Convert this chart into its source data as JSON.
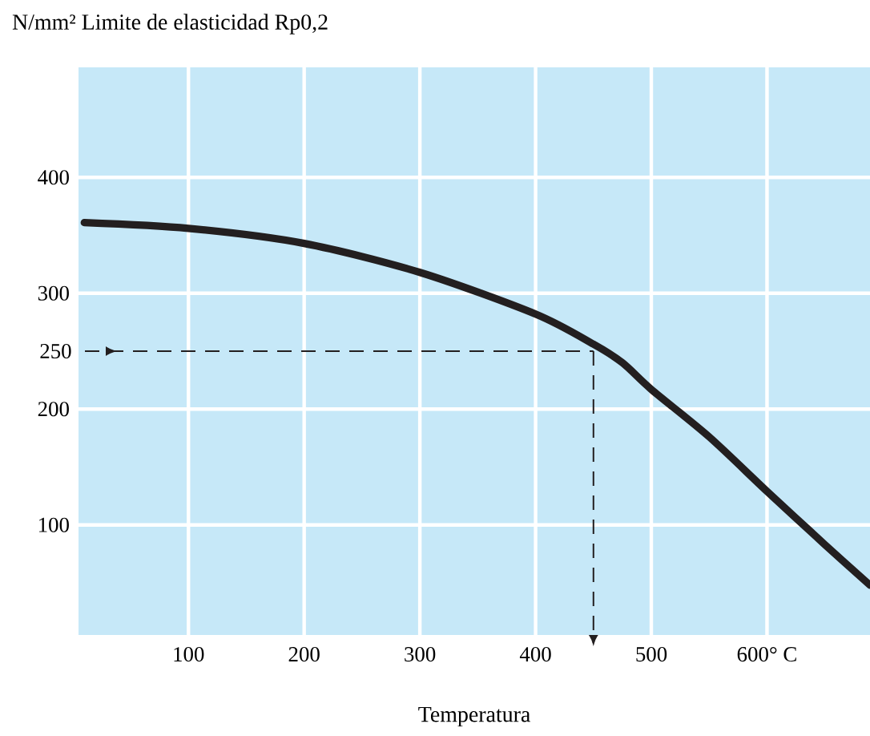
{
  "chart_data": {
    "type": "line",
    "ylabel": "N/mm² Limite de elasticidad Rp0,2",
    "xlabel": "Temperatura",
    "x": [
      10,
      100,
      200,
      300,
      400,
      450,
      475,
      500,
      550,
      600,
      650,
      689
    ],
    "series": [
      {
        "color": "#231f20",
        "values": [
          361,
          356,
          343,
          318,
          282,
          256,
          240,
          217,
          176,
          129,
          83,
          48
        ]
      }
    ],
    "xlim": [
      5,
      689
    ],
    "ylim": [
      5,
      495
    ],
    "xticks": [
      100,
      200,
      300,
      400,
      500,
      {
        "value": 600,
        "label": "600° C"
      }
    ],
    "yticks": [
      100,
      200,
      300,
      400
    ],
    "grid": true,
    "ref_lines": [
      {
        "axis": "y",
        "value": 250,
        "label": "250",
        "line_style": "dashed",
        "color": "#231f20"
      },
      {
        "axis": "x",
        "value": 450,
        "line_style": "dashed",
        "color": "#231f20"
      }
    ]
  }
}
